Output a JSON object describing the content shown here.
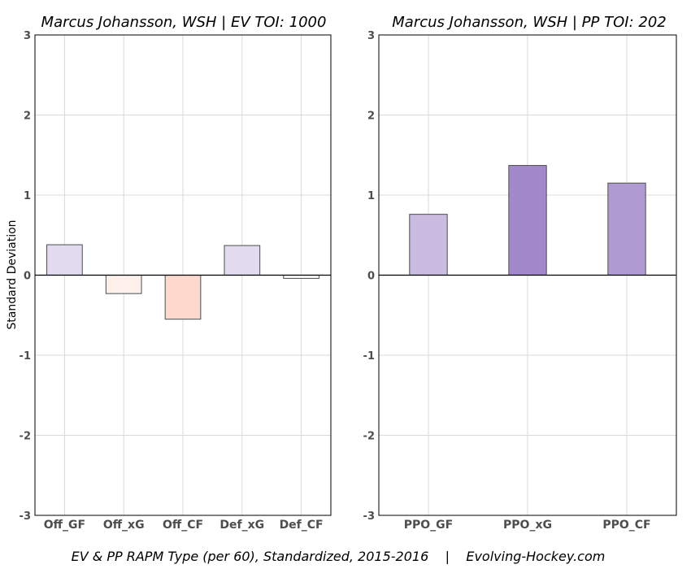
{
  "figure": {
    "ylabel": "Standard Deviation",
    "caption": "EV & PP RAPM Type (per 60), Standardized, 2015-2016    |    Evolving-Hockey.com",
    "colors": {
      "grid": "#d9d9d9",
      "zero_line": "#000000",
      "bar_stroke": "#4d4d4d"
    }
  },
  "chart_data": [
    {
      "type": "bar",
      "title": "Marcus Johansson, WSH  |  EV TOI: 1000",
      "ylabel": "Standard Deviation",
      "xlabel": "",
      "ylim": [
        -3,
        3
      ],
      "yticks": [
        -3,
        -2,
        -1,
        0,
        1,
        2,
        3
      ],
      "ytick_labels": [
        "-3",
        "-2",
        "-1",
        "0",
        "1",
        "2",
        "3"
      ],
      "grid": true,
      "categories": [
        "Off_GF",
        "Off_xG",
        "Off_CF",
        "Def_xG",
        "Def_CF"
      ],
      "values": [
        0.38,
        -0.23,
        -0.55,
        0.37,
        -0.04
      ],
      "colors": [
        "#e2dbf0",
        "#fdf0eb",
        "#fdd8cc",
        "#e2dbf0",
        "#fdfbfa"
      ]
    },
    {
      "type": "bar",
      "title": "Marcus Johansson, WSH  |  PP TOI: 202",
      "xlabel": "",
      "ylim": [
        -3,
        3
      ],
      "yticks": [
        -3,
        -2,
        -1,
        0,
        1,
        2,
        3
      ],
      "ytick_labels": [
        "-3",
        "-2",
        "-1",
        "0",
        "1",
        "2",
        "3"
      ],
      "grid": true,
      "categories": [
        "PPO_GF",
        "PPO_xG",
        "PPO_CF"
      ],
      "values": [
        0.76,
        1.37,
        1.15
      ],
      "colors": [
        "#cabbe1",
        "#a489ca",
        "#b09ad2"
      ]
    }
  ]
}
